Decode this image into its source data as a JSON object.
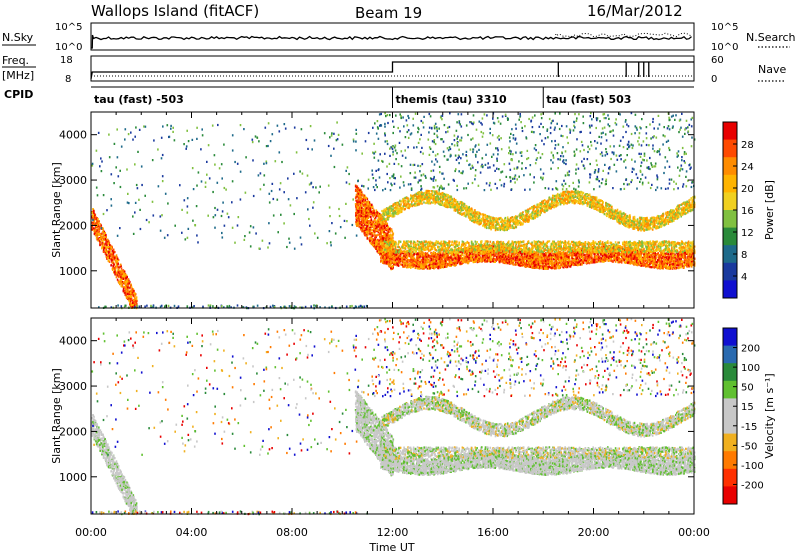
{
  "header": {
    "station": "Wallops Island (fitACF)",
    "beam": "Beam 19",
    "date": "16/Mar/2012"
  },
  "top_panels": {
    "nsky_label": "N.Sky",
    "nsearch_label": "N.Search",
    "freq_label_1": "Freq.",
    "freq_label_2": "[MHz]",
    "nave_label": "Nave",
    "cpid_label": "CPID",
    "nsky_ticks": [
      "10^5",
      "10^0"
    ],
    "nsearch_ticks": [
      "10^5",
      "10^0"
    ],
    "freq_ticks": [
      "18",
      "8"
    ],
    "nave_ticks": [
      "60",
      "0"
    ],
    "cpid_segments": [
      {
        "label": "tau (fast) -503",
        "start_hour": 0
      },
      {
        "label": "themis (tau) 3310",
        "start_hour": 12
      },
      {
        "label": "tau (fast) 503",
        "start_hour": 18
      }
    ]
  },
  "chart_data": [
    {
      "type": "heatmap",
      "name": "power",
      "xlabel": "",
      "ylabel": "Slant Range [km]",
      "colorbar_label": "Power [dB]",
      "colorbar_ticks": [
        "28",
        "24",
        "20",
        "16",
        "12",
        "8",
        "4"
      ],
      "colorbar_colors": [
        "#e80000",
        "#ff4a00",
        "#ff8c00",
        "#ffb400",
        "#f0d020",
        "#80c040",
        "#2a8a3a",
        "#1e6a8a",
        "#1a3a9e",
        "#1010d0"
      ],
      "x_ticks": [
        "00:00",
        "04:00",
        "08:00",
        "12:00",
        "16:00",
        "20:00",
        "00:00"
      ],
      "y_ticks": [
        "1000",
        "2000",
        "3000",
        "4000"
      ],
      "xlim_hours": [
        0,
        24
      ],
      "ylim_km": [
        180,
        4500
      ]
    },
    {
      "type": "heatmap",
      "name": "velocity",
      "xlabel": "Time UT",
      "ylabel": "Slant Range [km]",
      "colorbar_label": "Velocity [m s⁻¹]",
      "colorbar_ticks": [
        "200",
        "100",
        "50",
        "15",
        "-15",
        "-50",
        "-100",
        "-200"
      ],
      "colorbar_colors": [
        "#1010d0",
        "#2a6ab0",
        "#2a8a3a",
        "#60c030",
        "#c8c8c8",
        "#c8c8c8",
        "#f0b020",
        "#ff7a00",
        "#ff3000",
        "#e80000"
      ],
      "x_ticks": [
        "00:00",
        "04:00",
        "08:00",
        "12:00",
        "16:00",
        "20:00",
        "00:00"
      ],
      "y_ticks": [
        "1000",
        "2000",
        "3000",
        "4000"
      ],
      "xlim_hours": [
        0,
        24
      ],
      "ylim_km": [
        180,
        4500
      ]
    }
  ]
}
